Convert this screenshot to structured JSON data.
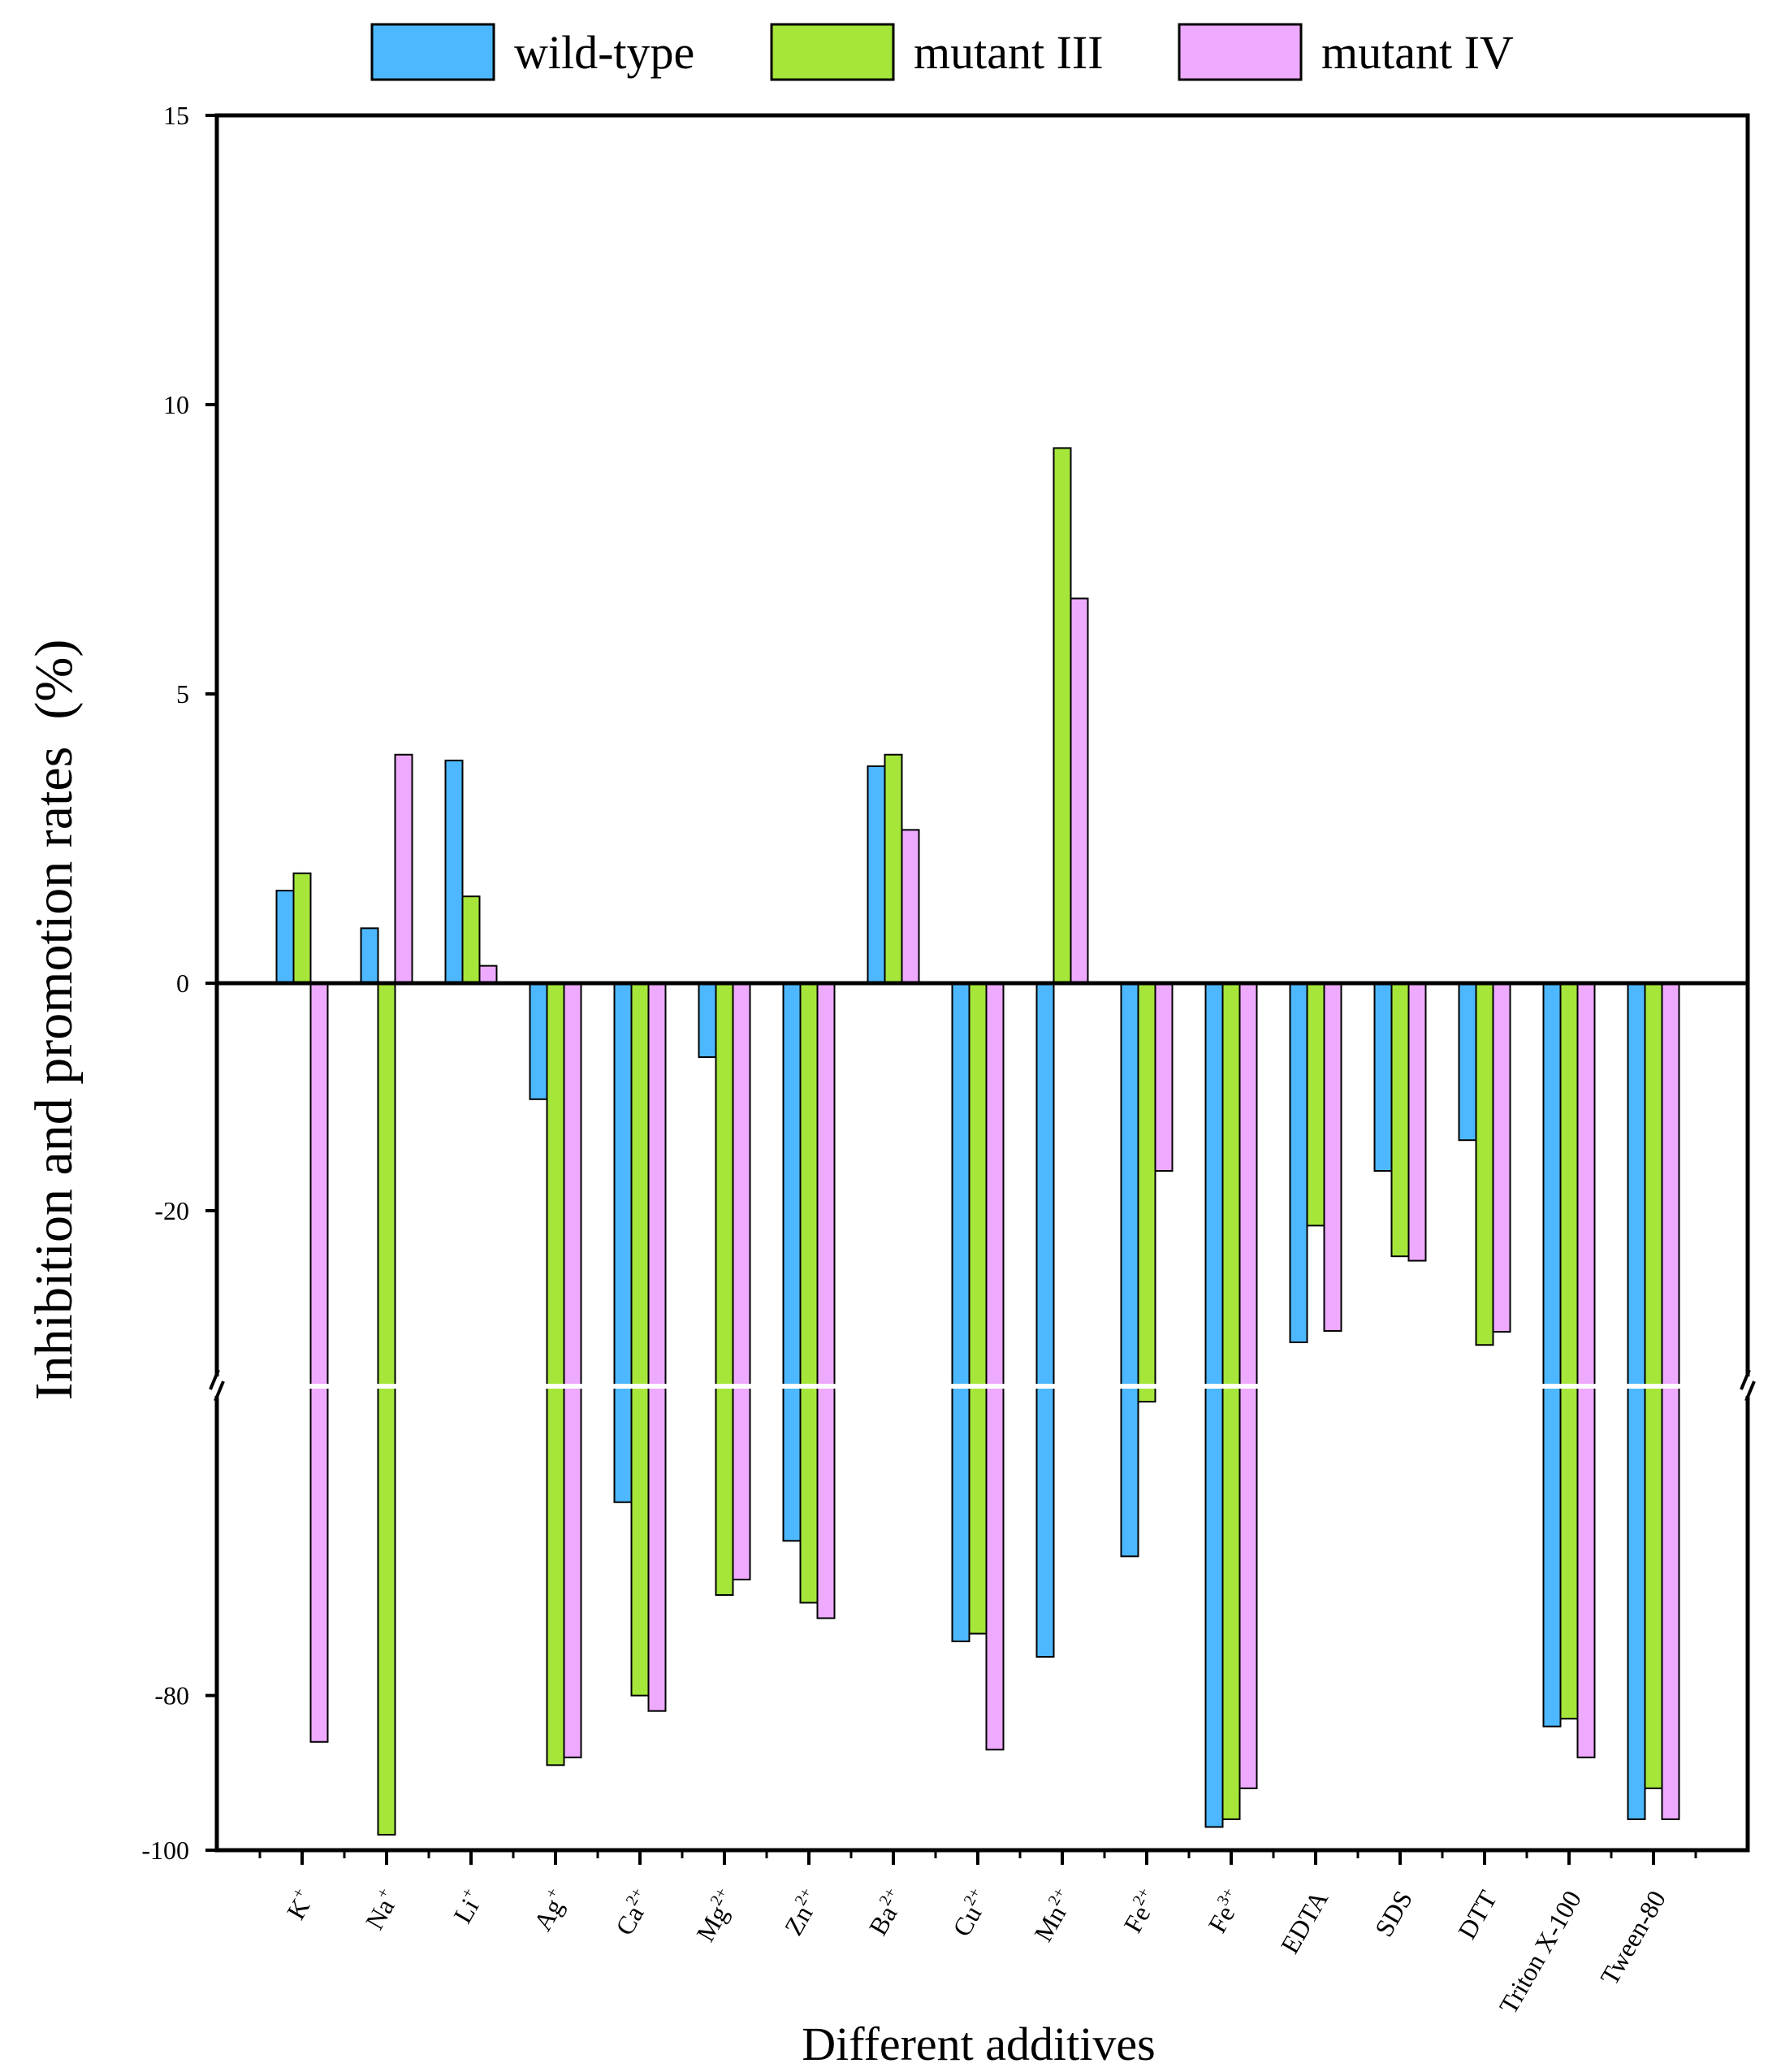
{
  "chart_data": {
    "type": "bar",
    "title": "",
    "xlabel": "Different additives",
    "ylabel": "Inhibition and promotion rates  (%)",
    "axis_break": {
      "lower_segment": [
        -100,
        -20
      ],
      "upper_segment": [
        -20,
        15
      ],
      "break_near": -40
    },
    "ylim": [
      -100,
      15
    ],
    "yticks": [
      {
        "value": 15,
        "label": "15"
      },
      {
        "value": 10,
        "label": "10"
      },
      {
        "value": 5,
        "label": "5"
      },
      {
        "value": 0,
        "label": "0"
      },
      {
        "value": -20,
        "label": "-20"
      },
      {
        "value": -80,
        "label": "-80"
      },
      {
        "value": -100,
        "label": "-100"
      }
    ],
    "categories": [
      {
        "base": "K",
        "sup": "+"
      },
      {
        "base": "Na",
        "sup": "+"
      },
      {
        "base": "Li",
        "sup": "+"
      },
      {
        "base": "Ag",
        "sup": "+"
      },
      {
        "base": "Ca",
        "sup": "2+"
      },
      {
        "base": "Mg",
        "sup": "2+"
      },
      {
        "base": "Zn",
        "sup": "2+"
      },
      {
        "base": "Ba",
        "sup": "2+"
      },
      {
        "base": "Cu",
        "sup": "2+"
      },
      {
        "base": "Mn",
        "sup": "2+"
      },
      {
        "base": "Fe",
        "sup": "2+"
      },
      {
        "base": "Fe",
        "sup": "3+"
      },
      {
        "base": "EDTA",
        "sup": ""
      },
      {
        "base": "SDS",
        "sup": ""
      },
      {
        "base": "DTT",
        "sup": ""
      },
      {
        "base": "Triton X-100",
        "sup": ""
      },
      {
        "base": "Tween-80",
        "sup": ""
      }
    ],
    "series": [
      {
        "name": "wild-type",
        "color": "#4db8ff",
        "values": [
          1.6,
          0.95,
          3.85,
          -10.2,
          -55,
          -6.5,
          -60,
          3.75,
          -73,
          -75,
          -62,
          -97,
          -35,
          -16.5,
          -13.8,
          -84,
          -96
        ]
      },
      {
        "name": "mutant III",
        "color": "#a6e63b",
        "values": [
          1.9,
          -98,
          1.5,
          -89,
          -80,
          -67,
          -68,
          3.95,
          -72,
          9.25,
          -42,
          -96,
          -21.7,
          -25.2,
          -35.3,
          -83,
          -92
        ]
      },
      {
        "name": "mutant IV",
        "color": "#eeaaff",
        "values": [
          -86,
          3.95,
          0.3,
          -88,
          -82,
          -65,
          -70,
          2.65,
          -87,
          6.65,
          -16.5,
          -92,
          -33.7,
          -25.7,
          -33.8,
          -88,
          -96
        ]
      }
    ],
    "legend_position": "top"
  }
}
